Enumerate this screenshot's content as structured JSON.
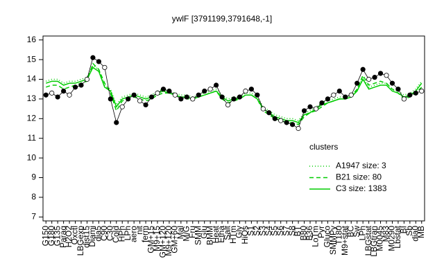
{
  "chart_data": {
    "type": "line",
    "title": "ywlF [3791199,3791648,-1]",
    "categories": [
      "G150",
      "G180",
      "G135",
      "Paraq",
      "H2O2",
      "Oxctl",
      "LBGexp",
      "dist15",
      "Diami",
      "dia5",
      "C90",
      "C30",
      "Cold",
      "HPh",
      "LPh",
      "aero",
      "nit",
      "ferm",
      "GM+15",
      "M9+15",
      "GM+120",
      "M9+120",
      "GM+60",
      "Mal",
      "M/G",
      "Fru",
      "SMM",
      "Glu",
      "BMM",
      "Heat",
      "Etha",
      "Salt",
      "HTm",
      "Gly",
      "HiOs",
      "S1",
      "S2",
      "S3",
      "S4",
      "S5",
      "S6",
      "S7",
      "S8",
      "BT",
      "B80",
      "B36",
      "LoTm",
      "Pyr",
      "Gluco",
      "SMMPy",
      "T180",
      "M9+stat",
      "BC",
      "Sw",
      "LPh",
      "LBGstat",
      "LBGtran",
      "M0045",
      "M83",
      "M0290",
      "Lbstat",
      "BI",
      "Sb",
      "dia0",
      "MB"
    ],
    "values": [
      13.2,
      13.3,
      13.1,
      13.4,
      13.2,
      13.6,
      13.7,
      14.0,
      15.1,
      14.9,
      14.6,
      13.0,
      11.8,
      12.6,
      13.0,
      13.2,
      12.9,
      12.7,
      13.1,
      13.3,
      13.5,
      13.4,
      13.2,
      13.0,
      13.1,
      13.0,
      13.2,
      13.4,
      13.5,
      13.7,
      13.1,
      12.7,
      13.0,
      13.1,
      13.4,
      13.5,
      13.2,
      12.5,
      12.3,
      12.0,
      11.9,
      11.8,
      11.7,
      11.5,
      12.4,
      12.6,
      12.5,
      12.8,
      13.0,
      13.2,
      13.4,
      13.1,
      13.2,
      13.8,
      14.5,
      14.0,
      14.1,
      14.3,
      14.2,
      13.8,
      13.5,
      13.0,
      13.2,
      13.3,
      13.4
    ],
    "point_color": "#000000",
    "legend_title": "clusters",
    "series": [
      {
        "name": "A1947 size: 3",
        "color": "#00cc00",
        "dash": "dotted",
        "values": [
          13.9,
          14.0,
          14.0,
          13.8,
          13.9,
          13.9,
          14.0,
          14.1,
          14.7,
          14.5,
          13.7,
          13.5,
          12.7,
          13.1,
          13.2,
          13.3,
          13.2,
          13.1,
          13.2,
          13.4,
          13.5,
          13.4,
          13.3,
          13.2,
          13.2,
          13.1,
          13.2,
          13.3,
          13.4,
          13.5,
          13.2,
          13.0,
          13.1,
          13.1,
          13.3,
          13.3,
          13.1,
          12.6,
          12.4,
          12.2,
          12.1,
          12.0,
          12.0,
          11.9,
          12.3,
          12.4,
          12.6,
          12.8,
          12.9,
          13.0,
          13.1,
          13.1,
          13.2,
          13.5,
          14.1,
          13.6,
          13.7,
          13.8,
          13.8,
          13.5,
          13.4,
          13.2,
          13.3,
          13.5,
          13.9
        ]
      },
      {
        "name": "B21 size: 80",
        "color": "#00cc00",
        "dash": "dashed",
        "values": [
          13.6,
          13.7,
          13.7,
          13.5,
          13.6,
          13.7,
          13.8,
          13.9,
          14.8,
          14.5,
          13.8,
          13.3,
          12.4,
          12.9,
          13.0,
          13.1,
          13.0,
          12.9,
          13.0,
          13.2,
          13.3,
          13.3,
          13.2,
          13.1,
          13.0,
          13.0,
          13.1,
          13.2,
          13.3,
          13.4,
          13.0,
          12.8,
          12.9,
          13.0,
          13.2,
          13.2,
          13.0,
          12.4,
          12.2,
          12.0,
          11.9,
          11.8,
          11.8,
          11.7,
          12.1,
          12.3,
          12.4,
          12.6,
          12.8,
          12.9,
          13.0,
          13.0,
          13.1,
          13.5,
          14.2,
          13.7,
          13.8,
          13.9,
          13.8,
          13.5,
          13.3,
          13.0,
          13.1,
          13.3,
          13.6
        ]
      },
      {
        "name": "C3 size: 1383",
        "color": "#00cc00",
        "dash": "solid",
        "values": [
          13.8,
          13.9,
          13.9,
          13.7,
          13.8,
          13.8,
          13.9,
          14.0,
          14.6,
          14.4,
          13.6,
          13.4,
          12.6,
          13.0,
          13.1,
          13.2,
          13.1,
          13.0,
          13.1,
          13.3,
          13.4,
          13.3,
          13.2,
          13.1,
          13.1,
          13.0,
          13.1,
          13.2,
          13.3,
          13.4,
          13.1,
          12.9,
          13.0,
          13.0,
          13.2,
          13.2,
          13.0,
          12.5,
          12.3,
          12.1,
          12.0,
          11.9,
          11.9,
          11.8,
          12.2,
          12.3,
          12.5,
          12.7,
          12.8,
          12.9,
          13.0,
          13.0,
          13.1,
          13.4,
          14.0,
          13.5,
          13.6,
          13.7,
          13.7,
          13.4,
          13.3,
          13.1,
          13.2,
          13.4,
          13.8
        ]
      }
    ],
    "ylim": [
      6.8,
      16.2
    ],
    "yticks": [
      7,
      8,
      9,
      10,
      11,
      12,
      13,
      14,
      15,
      16
    ],
    "grid": false
  }
}
